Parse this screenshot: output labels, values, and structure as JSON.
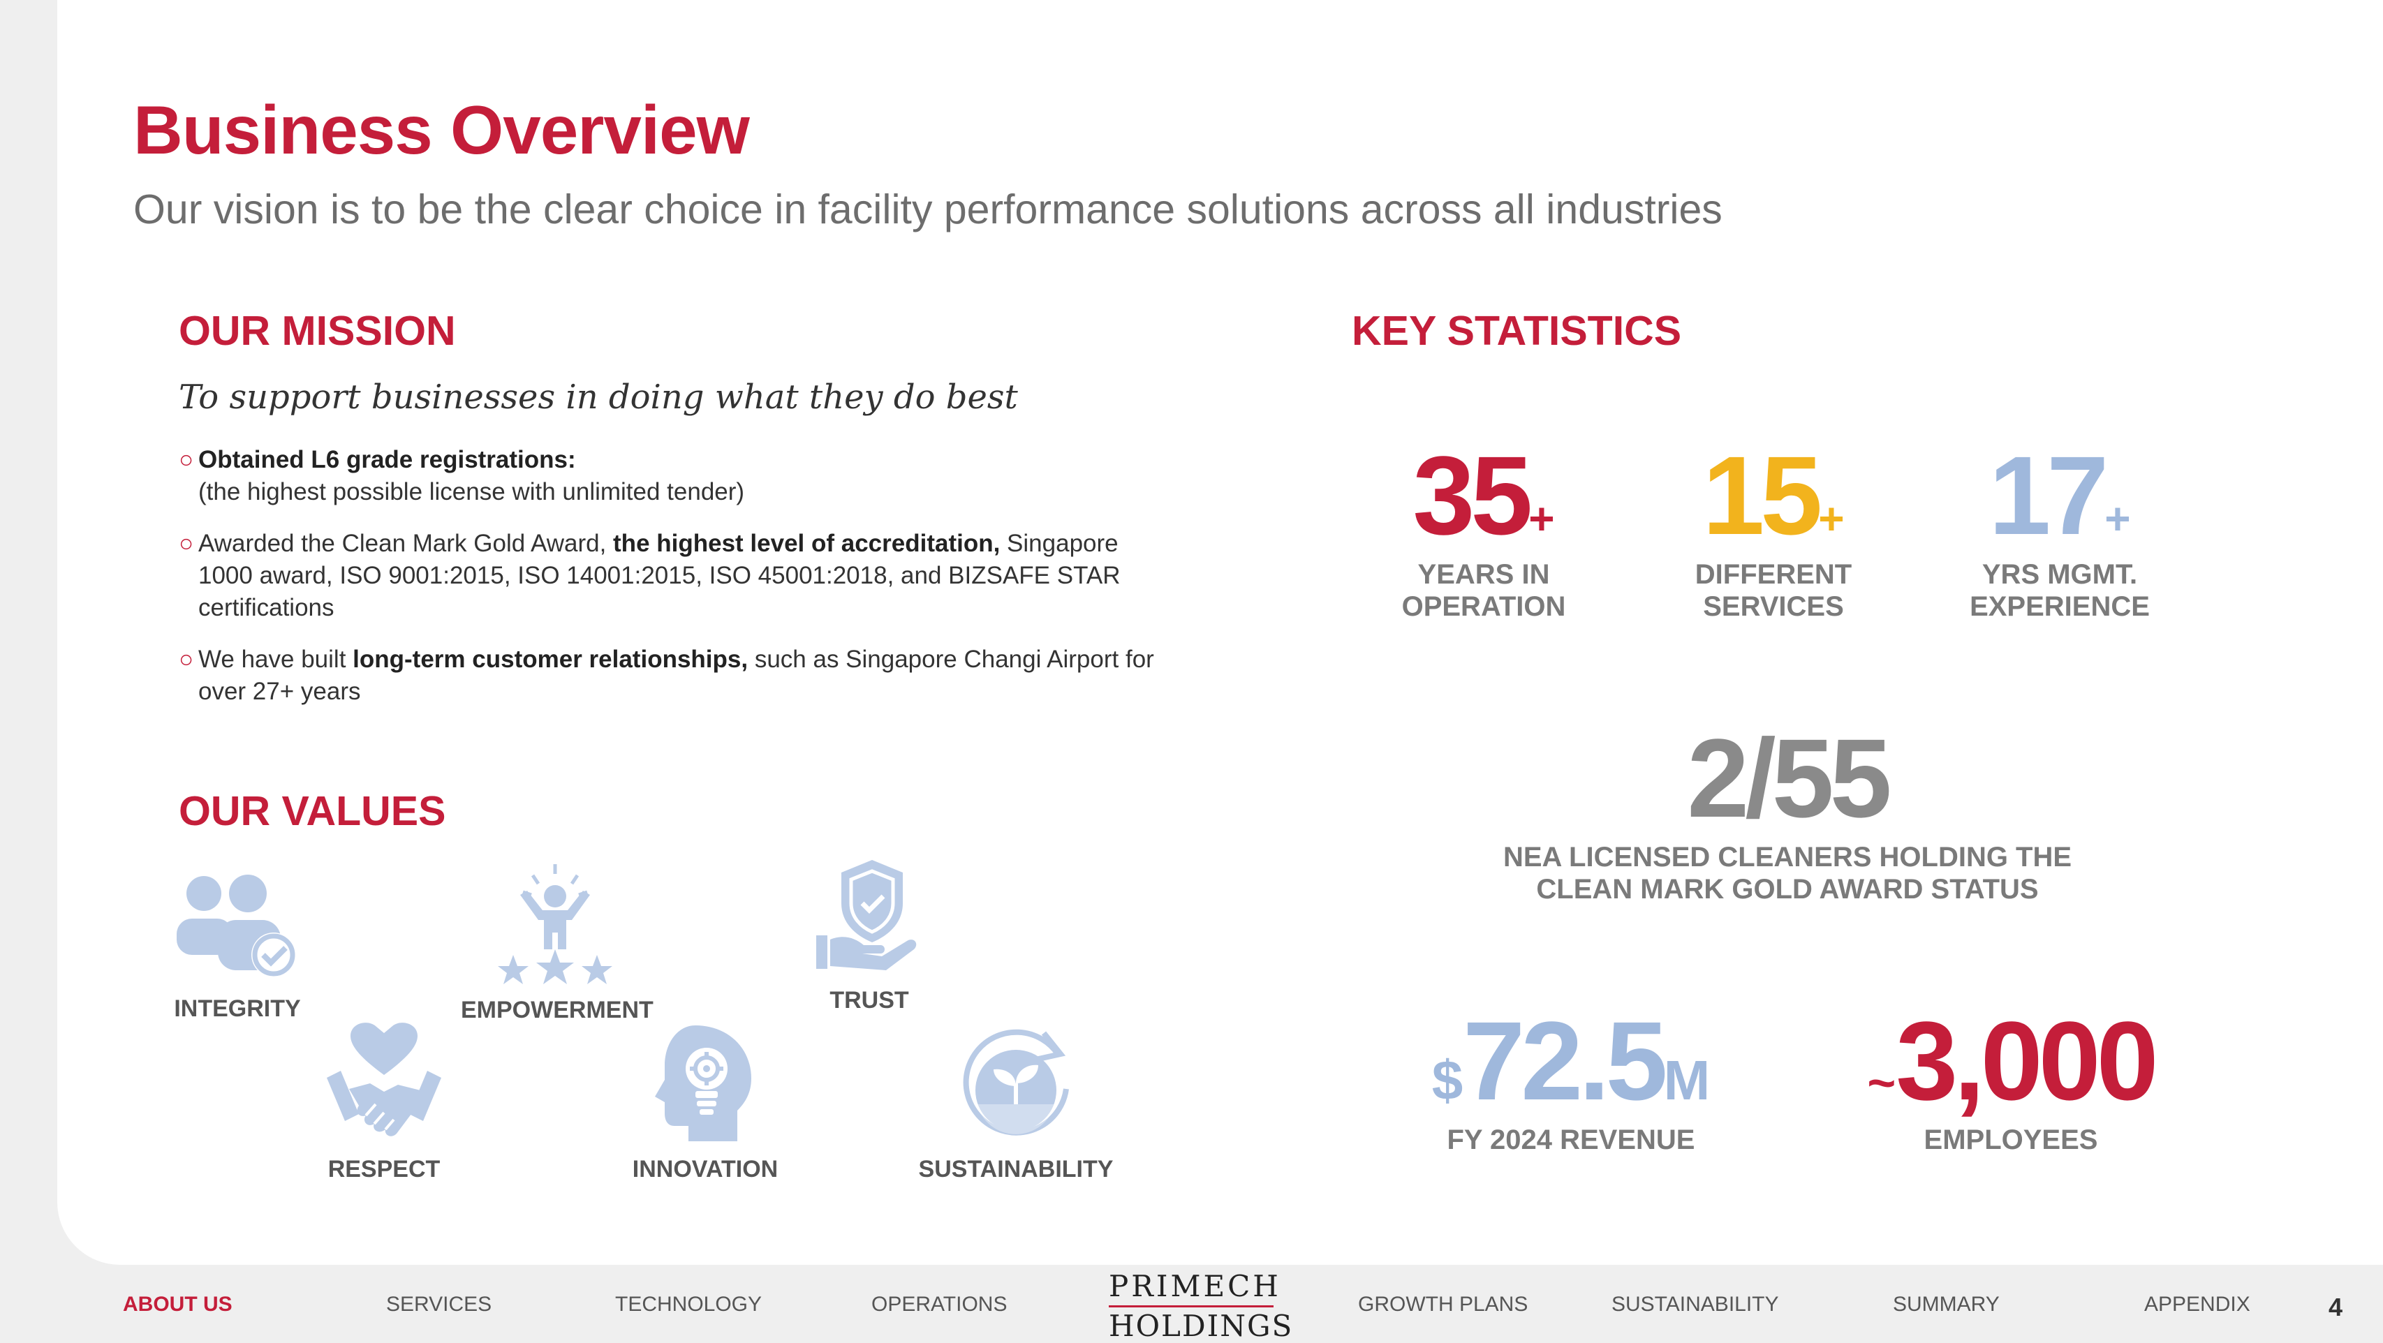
{
  "header": {
    "title": "Business Overview",
    "subtitle": "Our vision is to be the clear choice in facility performance solutions across all industries"
  },
  "mission": {
    "heading": "OUR MISSION",
    "tagline": "To support businesses in doing what they do best",
    "bullets": [
      {
        "bold": "Obtained L6 grade registrations:",
        "text": "(the highest possible license with unlimited tender)"
      },
      {
        "pre": "Awarded the Clean Mark Gold Award, ",
        "bold": "the highest level of accreditation,",
        "post": " Singapore 1000 award,  ISO 9001:2015, ISO 14001:2015, ISO 45001:2018, and BIZSAFE STAR certifications"
      },
      {
        "pre": "We have built ",
        "bold": "long-term customer relationships,",
        "post": " such as Singapore Changi Airport for over 27+ years"
      }
    ]
  },
  "values": {
    "heading": "OUR VALUES",
    "items": [
      {
        "label": "INTEGRITY",
        "icon": "people-check-icon"
      },
      {
        "label": "EMPOWERMENT",
        "icon": "person-stars-icon"
      },
      {
        "label": "TRUST",
        "icon": "shield-hand-icon"
      },
      {
        "label": "RESPECT",
        "icon": "handshake-heart-icon"
      },
      {
        "label": "INNOVATION",
        "icon": "head-bulb-icon"
      },
      {
        "label": "SUSTAINABILITY",
        "icon": "sprout-cycle-icon"
      }
    ]
  },
  "stats": {
    "heading": "KEY STATISTICS",
    "years": {
      "value": "35",
      "suffix": "+",
      "label_1": "YEARS IN",
      "label_2": "OPERATION"
    },
    "services": {
      "value": "15",
      "suffix": "+",
      "label_1": "DIFFERENT",
      "label_2": "SERVICES"
    },
    "mgmt": {
      "value": "17",
      "suffix": "+",
      "label_1": "YRS MGMT.",
      "label_2": "EXPERIENCE"
    },
    "nea": {
      "value": "2/55",
      "label_1": "NEA LICENSED CLEANERS HOLDING THE",
      "label_2": "CLEAN MARK GOLD AWARD STATUS"
    },
    "revenue": {
      "prefix": "$",
      "value": "72.5",
      "suffix": "M",
      "label": "FY 2024 REVENUE"
    },
    "employees": {
      "prefix": "~",
      "value": "3,000",
      "label": "EMPLOYEES"
    }
  },
  "footer": {
    "nav": [
      "ABOUT US",
      "SERVICES",
      "TECHNOLOGY",
      "OPERATIONS",
      "GROWTH PLANS",
      "SUSTAINABILITY",
      "SUMMARY",
      "APPENDIX"
    ],
    "logo_top": "PRIMECH",
    "logo_bottom": "HOLDINGS",
    "page_number": "4"
  },
  "colors": {
    "brand_red": "#c41e3a",
    "accent_yellow": "#f2b31d",
    "accent_blue": "#9fb8dc",
    "icon_blue": "#b9cbe6",
    "stat_grey": "#8a8a8a"
  }
}
